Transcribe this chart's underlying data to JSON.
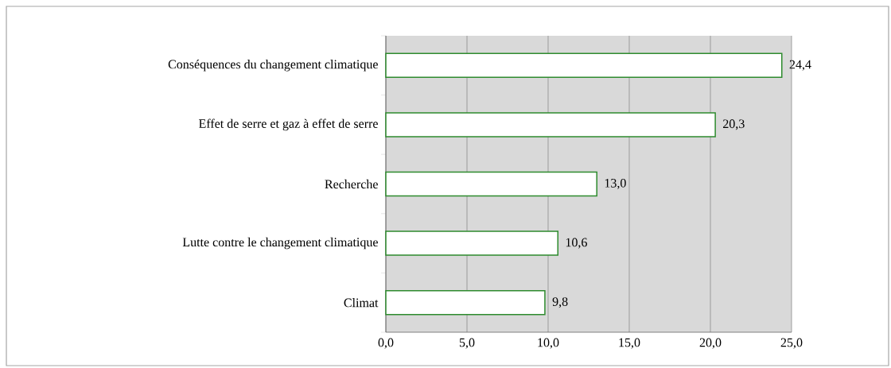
{
  "chart_data": {
    "type": "bar",
    "orientation": "horizontal",
    "categories": [
      "Conséquences du changement climatique",
      "Effet de serre et gaz à effet de serre",
      "Recherche",
      "Lutte contre le changement climatique",
      "Climat"
    ],
    "values": [
      24.4,
      20.3,
      13.0,
      10.6,
      9.8
    ],
    "value_labels": [
      "24,4",
      "20,3",
      "13,0",
      "10,6",
      "9,8"
    ],
    "color": "#ffffff",
    "xlim": [
      0,
      25
    ],
    "xticks": [
      {
        "value": 0,
        "label": "0,0"
      },
      {
        "value": 5,
        "label": "5,0"
      },
      {
        "value": 10,
        "label": "10,0"
      },
      {
        "value": 15,
        "label": "15,0"
      },
      {
        "value": 20,
        "label": "20,0"
      },
      {
        "value": 25,
        "label": "25,0"
      }
    ],
    "grid": "x"
  }
}
